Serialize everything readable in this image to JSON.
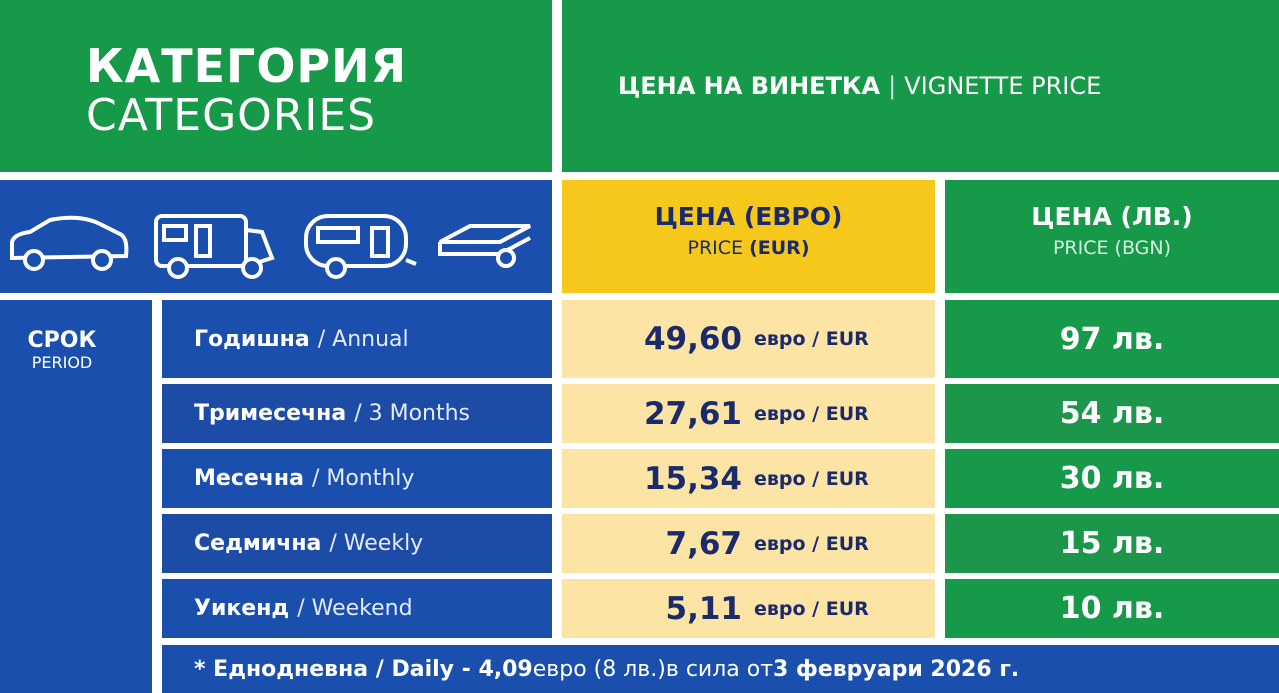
{
  "header": {
    "title_bg": "КАТЕГОРИЯ",
    "title_en": "CATEGORIES",
    "price_title_bg": "ЦЕНА НА ВИНЕТКА",
    "price_title_sep": "|",
    "price_title_en": "VIGNETTE PRICE"
  },
  "columns": {
    "eur": {
      "bg": "ЦЕНА (ЕВРО)",
      "en": "PRICE",
      "en_unit": "(EUR)"
    },
    "bgn": {
      "bg": "ЦЕНА (ЛВ.)",
      "en": "PRICE (BGN)"
    }
  },
  "period": {
    "bg": "СРОК",
    "en": "PERIOD"
  },
  "rows": [
    {
      "name_bg": "Годишна",
      "name_en": "/ Annual",
      "eur": "49,60",
      "eur_unit": "евро / EUR",
      "bgn": "97 лв."
    },
    {
      "name_bg": "Тримесечна",
      "name_en": "/ 3 Months",
      "eur": "27,61",
      "eur_unit": "евро / EUR",
      "bgn": "54 лв."
    },
    {
      "name_bg": "Месечна",
      "name_en": "/ Monthly",
      "eur": "15,34",
      "eur_unit": "евро / EUR",
      "bgn": "30 лв."
    },
    {
      "name_bg": "Седмична",
      "name_en": "/ Weekly",
      "eur": "7,67",
      "eur_unit": "евро / EUR",
      "bgn": "15 лв."
    },
    {
      "name_bg": "Уикенд",
      "name_en": "/ Weekend",
      "eur": "5,11",
      "eur_unit": "евро / EUR",
      "bgn": "10 лв."
    }
  ],
  "footer": [
    "* Еднодневна / Daily - 4,09",
    "евро (8 лв.)",
    "в сила от",
    "3 февруари 2026 г."
  ]
}
